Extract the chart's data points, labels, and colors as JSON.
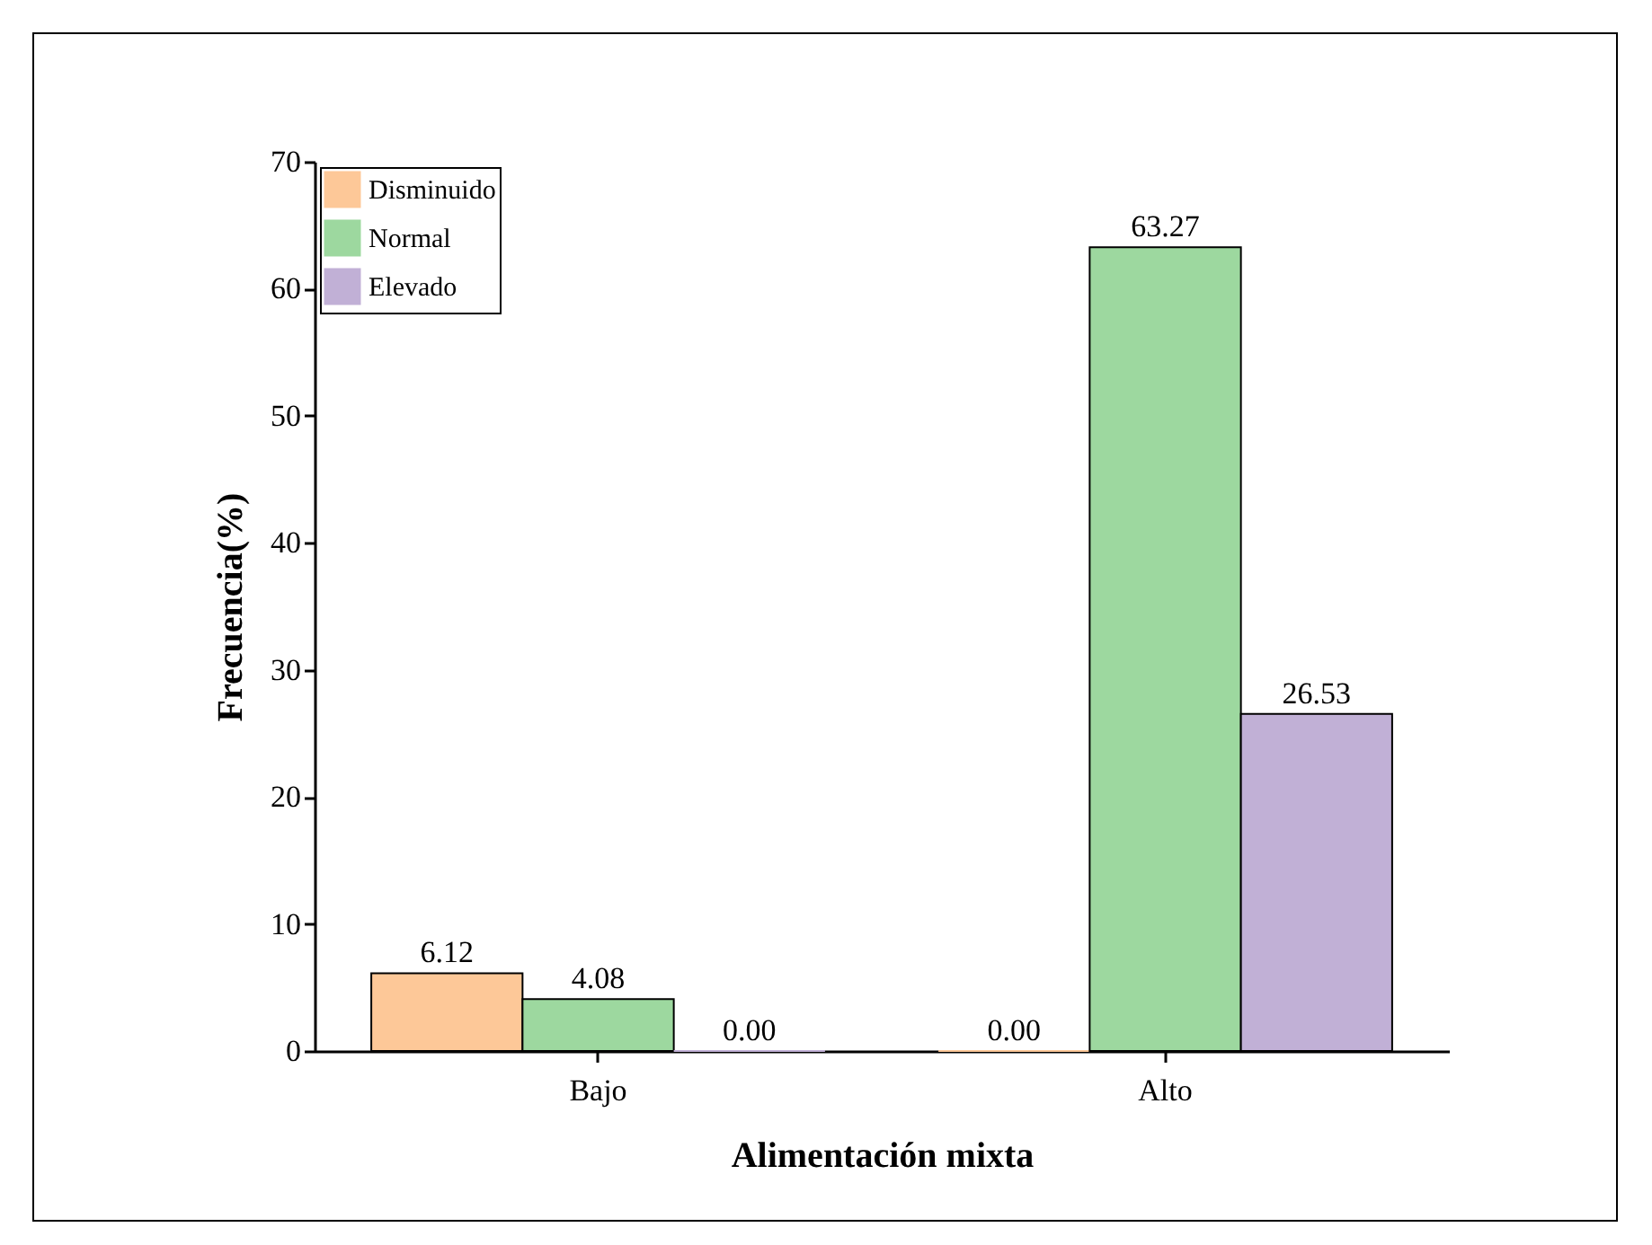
{
  "chart_data": {
    "type": "bar",
    "xlabel": "Alimentación mixta",
    "ylabel": "Frecuencia(%)",
    "categories": [
      "Bajo",
      "Alto"
    ],
    "series": [
      {
        "name": "Disminuido",
        "color": "#fdc898",
        "values": [
          6.12,
          0
        ],
        "value_labels": [
          "6.12",
          "0.00"
        ]
      },
      {
        "name": "Normal",
        "color": "#9dd89f",
        "values": [
          4.08,
          63.27
        ],
        "value_labels": [
          "4.08",
          "63.27"
        ]
      },
      {
        "name": "Elevado",
        "color": "#c1b0d6",
        "values": [
          0,
          26.53
        ],
        "value_labels": [
          "0.00",
          "26.53"
        ]
      }
    ],
    "ylim": [
      0,
      70
    ],
    "yticks": [
      0,
      10,
      20,
      30,
      40,
      50,
      60,
      70
    ],
    "grid": false,
    "legend": "top left"
  }
}
